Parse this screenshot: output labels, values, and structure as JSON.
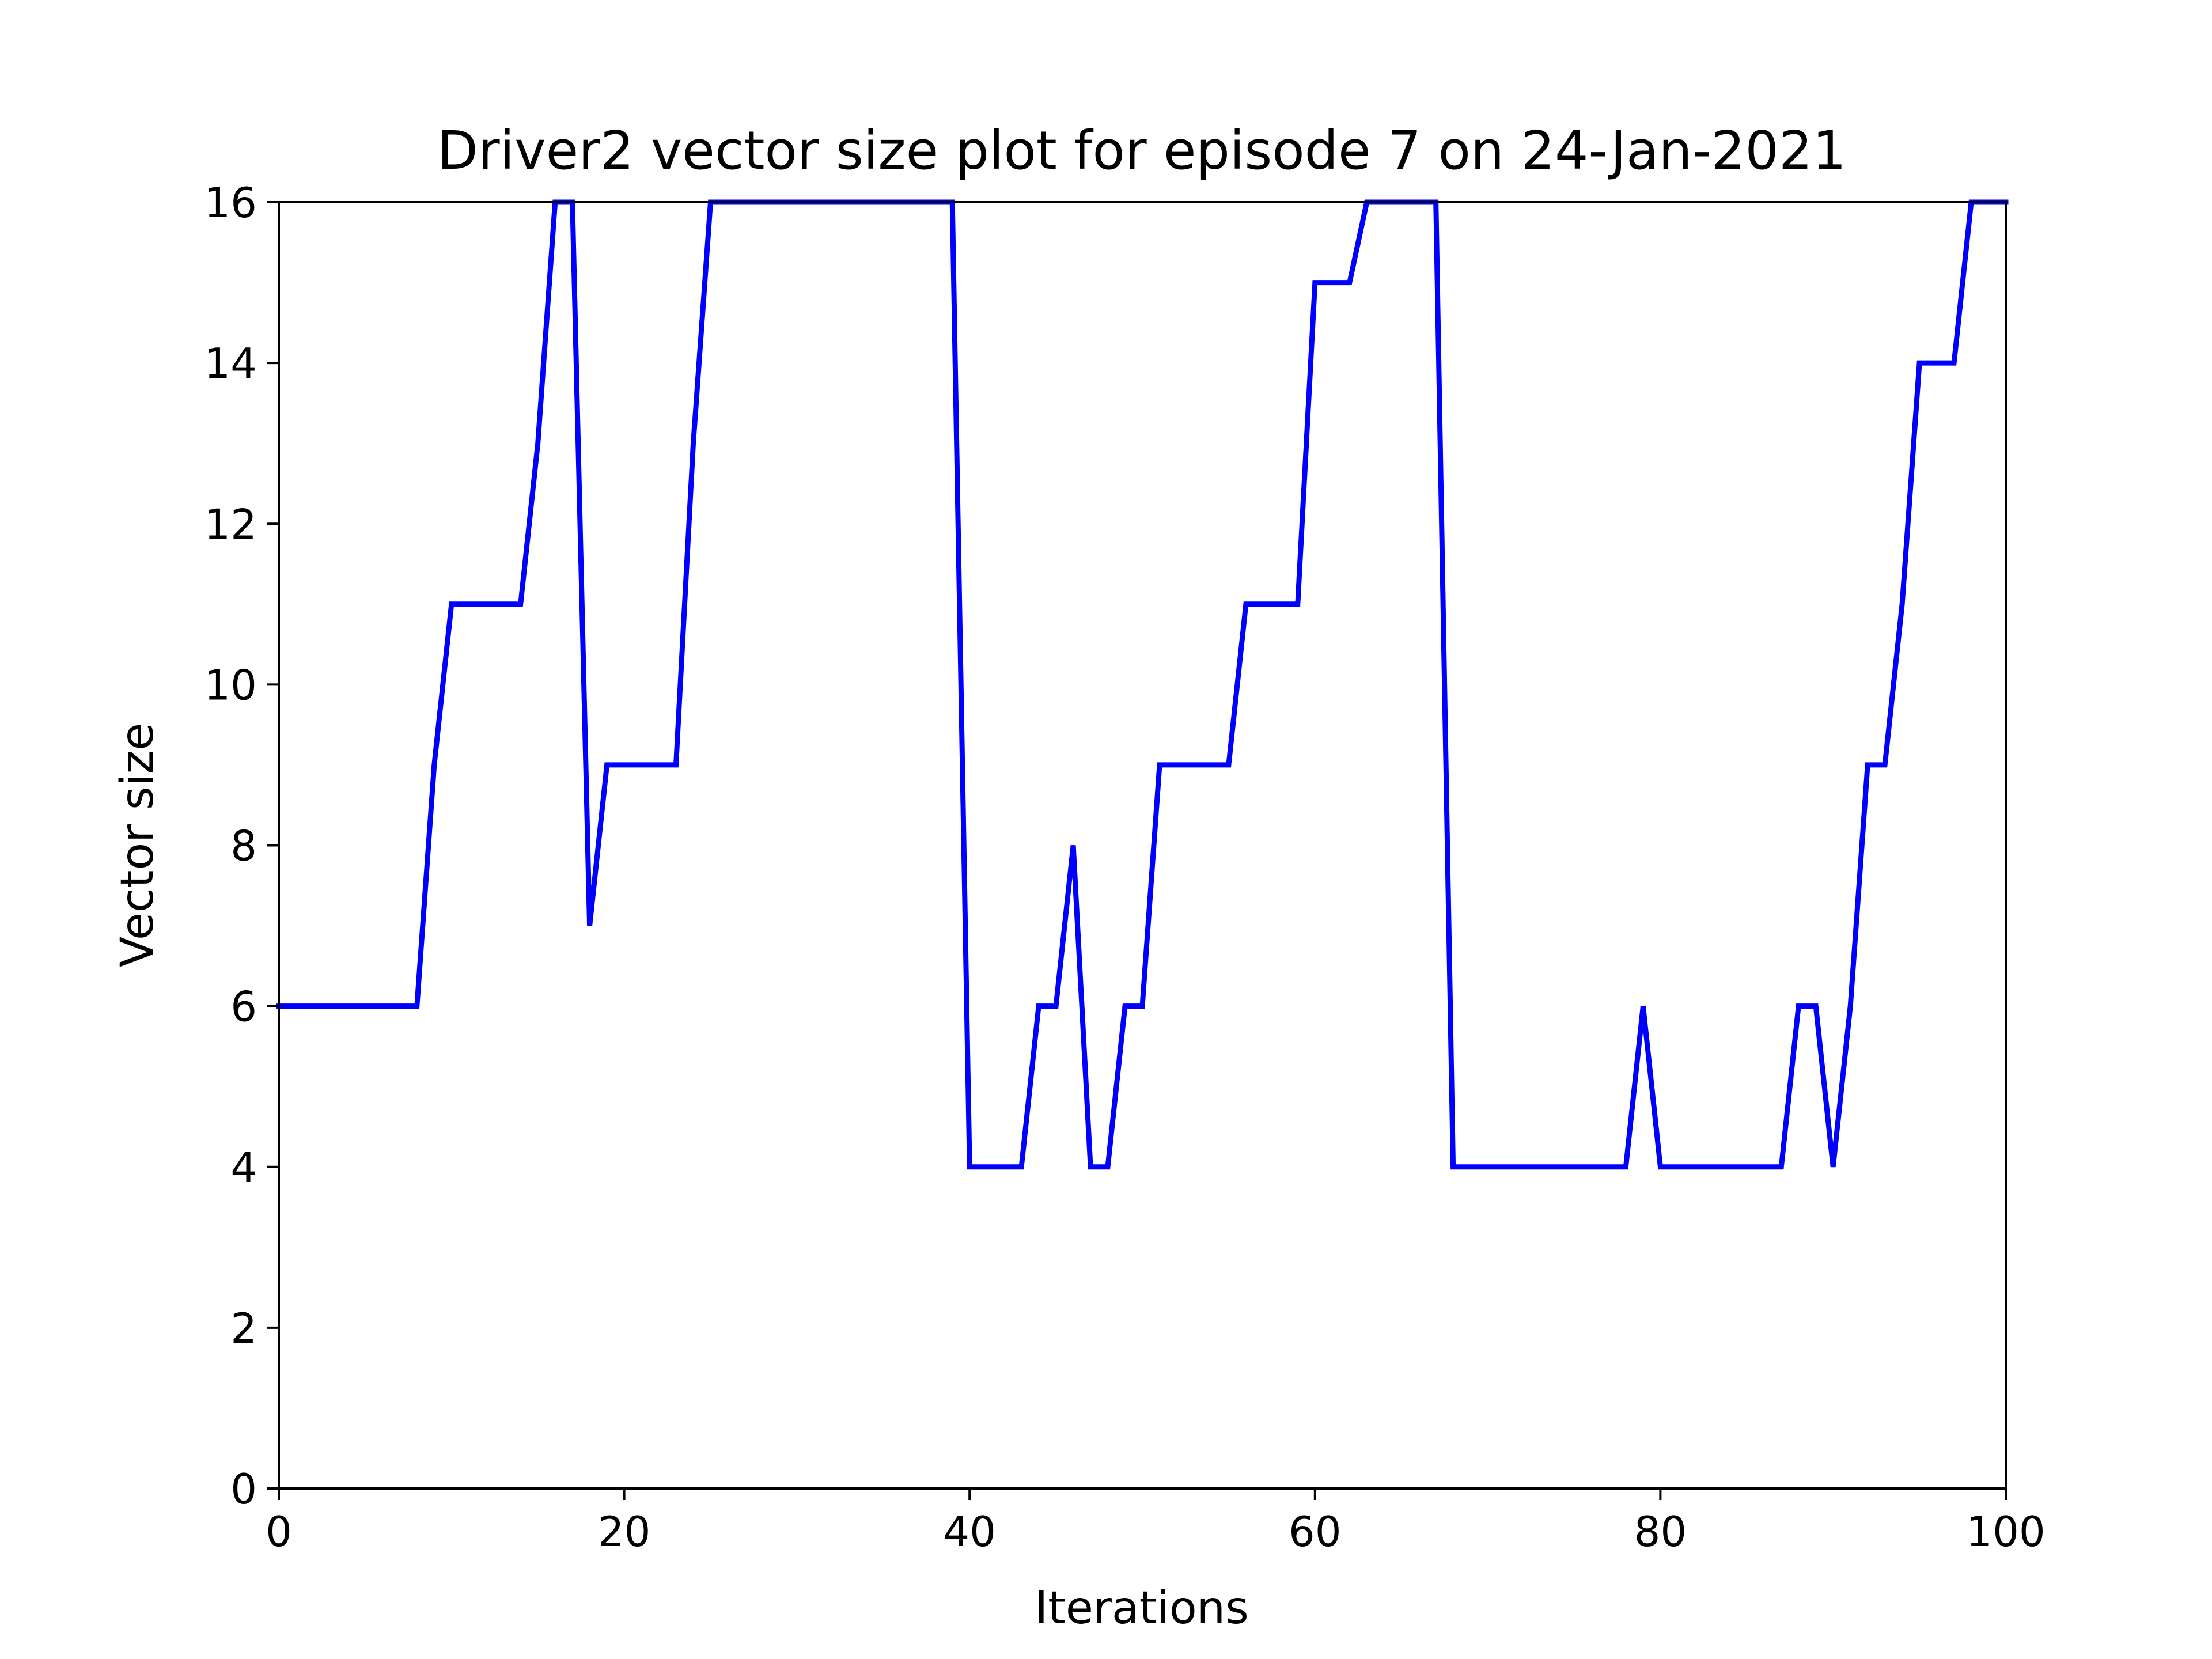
{
  "chart_data": {
    "type": "line",
    "title": "Driver2 vector size plot for episode 7 on 24-Jan-2021",
    "xlabel": "Iterations",
    "ylabel": "Vector size",
    "xlim": [
      0,
      100
    ],
    "ylim": [
      0,
      16
    ],
    "xticks": [
      0,
      20,
      40,
      60,
      80,
      100
    ],
    "yticks": [
      0,
      2,
      4,
      6,
      8,
      10,
      12,
      14,
      16
    ],
    "grid": false,
    "legend": "none",
    "line_color": "#0000ff",
    "series": [
      {
        "x": [
          0,
          1,
          2,
          3,
          4,
          5,
          6,
          7,
          8,
          9,
          10,
          11,
          12,
          13,
          14,
          15,
          16,
          17,
          18,
          19,
          20,
          21,
          22,
          23,
          24,
          25,
          26,
          27,
          28,
          29,
          30,
          31,
          32,
          33,
          34,
          35,
          36,
          37,
          38,
          39,
          40,
          41,
          42,
          43,
          44,
          45,
          46,
          47,
          48,
          49,
          50,
          51,
          52,
          53,
          54,
          55,
          56,
          57,
          58,
          59,
          60,
          61,
          62,
          63,
          64,
          65,
          66,
          67,
          68,
          69,
          70,
          71,
          72,
          73,
          74,
          75,
          76,
          77,
          78,
          79,
          80,
          81,
          82,
          83,
          84,
          85,
          86,
          87,
          88,
          89,
          90,
          91,
          92,
          93,
          94,
          95,
          96,
          97,
          98,
          99,
          100
        ],
        "values": [
          6,
          6,
          6,
          6,
          6,
          6,
          6,
          6,
          6,
          9,
          11,
          11,
          11,
          11,
          11,
          13,
          16,
          16,
          7,
          9,
          9,
          9,
          9,
          9,
          13,
          16,
          16,
          16,
          16,
          16,
          16,
          16,
          16,
          16,
          16,
          16,
          16,
          16,
          16,
          16,
          4,
          4,
          4,
          4,
          6,
          6,
          8,
          4,
          4,
          6,
          6,
          9,
          9,
          9,
          9,
          9,
          11,
          11,
          11,
          11,
          15,
          15,
          15,
          16,
          16,
          16,
          16,
          16,
          4,
          4,
          4,
          4,
          4,
          4,
          4,
          4,
          4,
          4,
          4,
          6,
          4,
          4,
          4,
          4,
          4,
          4,
          4,
          4,
          6,
          6,
          4,
          6,
          9,
          9,
          11,
          14,
          14,
          14,
          16,
          16,
          16
        ]
      }
    ]
  }
}
